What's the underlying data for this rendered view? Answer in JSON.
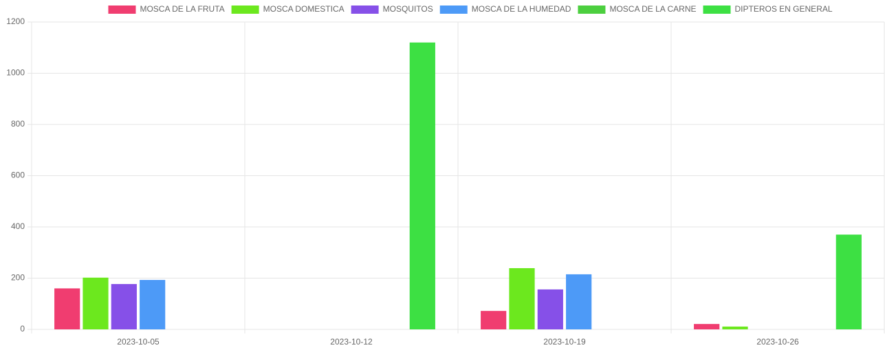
{
  "chart_data": {
    "type": "bar",
    "categories": [
      "2023-10-05",
      "2023-10-12",
      "2023-10-19",
      "2023-10-26"
    ],
    "series": [
      {
        "name": "MOSCA DE LA FRUTA",
        "color": "#f03d70",
        "values": [
          160,
          0,
          72,
          21
        ]
      },
      {
        "name": "MOSCA DOMESTICA",
        "color": "#6ce81e",
        "values": [
          202,
          0,
          239,
          11
        ]
      },
      {
        "name": "MOSQUITOS",
        "color": "#8650e8",
        "values": [
          177,
          0,
          156,
          0
        ]
      },
      {
        "name": "MOSCA DE LA HUMEDAD",
        "color": "#4d9af7",
        "values": [
          193,
          0,
          215,
          0
        ]
      },
      {
        "name": "MOSCA DE LA CARNE",
        "color": "#4ccf3f",
        "values": [
          0,
          0,
          0,
          0
        ]
      },
      {
        "name": "DIPTEROS EN GENERAL",
        "color": "#3de043",
        "values": [
          0,
          1120,
          0,
          370
        ]
      }
    ],
    "ylim": [
      0,
      1200
    ],
    "yticks": [
      0,
      200,
      400,
      600,
      800,
      1000,
      1200
    ],
    "grid": true,
    "legend": "top"
  }
}
